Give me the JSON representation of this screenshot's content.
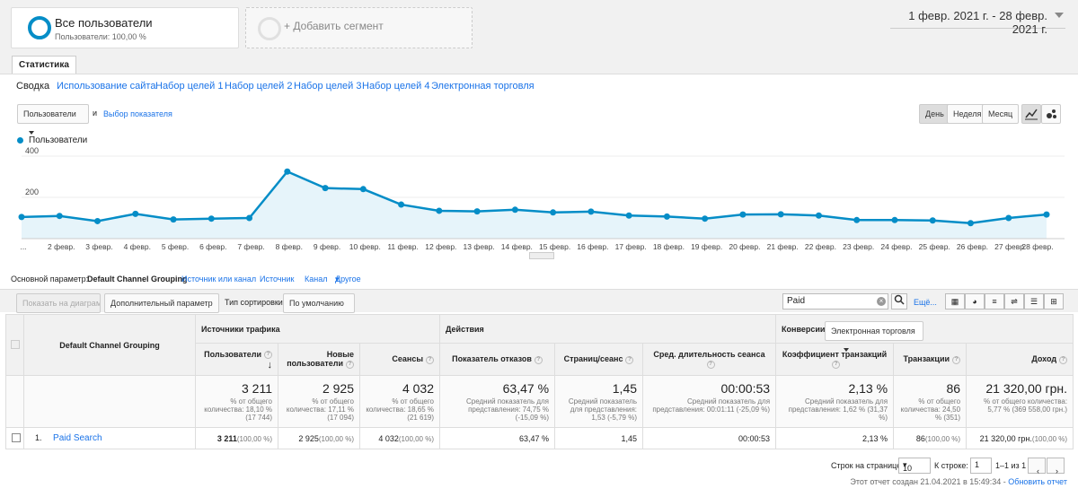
{
  "segments": {
    "all": {
      "title": "Все пользователи",
      "subtitle": "Пользователи: 100,00 %"
    },
    "add": {
      "title": "+ Добавить сегмент"
    }
  },
  "date_range": "1 февр. 2021 г. - 28 февр. 2021 г.",
  "tab": "Статистика",
  "subnav": [
    "Сводка",
    "Использование сайта",
    "Набор целей 1",
    "Набор целей 2",
    "Набор целей 3",
    "Набор целей 4",
    "Электронная торговля"
  ],
  "chart_controls": {
    "metric": "Пользователи",
    "and": "и",
    "choose_metric": "Выбор показателя",
    "day": "День",
    "week": "Неделя",
    "month": "Месяц"
  },
  "legend": "Пользователи",
  "chart_data": {
    "type": "area",
    "series": [
      {
        "name": "Пользователи",
        "color": "#058dc7",
        "values": [
          105,
          110,
          85,
          120,
          93,
          97,
          100,
          325,
          245,
          240,
          165,
          135,
          132,
          140,
          127,
          131,
          112,
          107,
          97,
          117,
          118,
          112,
          90,
          90,
          88,
          75,
          100,
          117
        ]
      }
    ],
    "x": [
      "...",
      "2 февр.",
      "3 февр.",
      "4 февр.",
      "5 февр.",
      "6 февр.",
      "7 февр.",
      "8 февр.",
      "9 февр.",
      "10 февр.",
      "11 февр.",
      "12 февр.",
      "13 февр.",
      "14 февр.",
      "15 февр.",
      "16 февр.",
      "17 февр.",
      "18 февр.",
      "19 февр.",
      "20 февр.",
      "21 февр.",
      "22 февр.",
      "23 февр.",
      "24 февр.",
      "25 февр.",
      "26 февр.",
      "27 февр.",
      "28 февр."
    ],
    "y_ticks": [
      "400",
      "200"
    ],
    "ylim": [
      0,
      400
    ]
  },
  "dimensions": {
    "label": "Основной параметр:",
    "items": [
      "Default Channel Grouping",
      "Источник или канал",
      "Источник",
      "Канал",
      "Другое"
    ]
  },
  "toolbar": {
    "plot": "Показать на диаграмме",
    "secondary": "Дополнительный параметр",
    "sort_label": "Тип сортировки:",
    "sort_value": "По умолчанию",
    "search": "Paid",
    "more": "Ещё..."
  },
  "table": {
    "dim_header": "Default Channel Grouping",
    "groups": {
      "acquisition": "Источники трафика",
      "behavior": "Действия",
      "conversions": "Конверсии"
    },
    "conversion_select": "Электронная торговля",
    "columns": [
      "Пользователи",
      "Новые пользователи",
      "Сеансы",
      "Показатель отказов",
      "Страниц/сеанс",
      "Сред. длительность сеанса",
      "Коэффициент транзакций",
      "Транзакции",
      "Доход"
    ],
    "totals": [
      {
        "value": "3 211",
        "sub": "% от общего количества: 18,10 % (17 744)"
      },
      {
        "value": "2 925",
        "sub": "% от общего количества: 17,11 % (17 094)"
      },
      {
        "value": "4 032",
        "sub": "% от общего количества: 18,65 % (21 619)"
      },
      {
        "value": "63,47 %",
        "sub": "Средний показатель для представления: 74,75 % (-15,09 %)"
      },
      {
        "value": "1,45",
        "sub": "Средний показатель для представления: 1,53 (-5,79 %)"
      },
      {
        "value": "00:00:53",
        "sub": "Средний показатель для представления: 00:01:11 (-25,09 %)"
      },
      {
        "value": "2,13 %",
        "sub": "Средний показатель для представления: 1,62 % (31,37 %)"
      },
      {
        "value": "86",
        "sub": "% от общего количества: 24,50 % (351)"
      },
      {
        "value": "21 320,00 грн.",
        "sub": "% от общего количества: 5,77 % (369 558,00 грн.)"
      }
    ],
    "rows": [
      {
        "index": "1.",
        "name": "Paid Search",
        "cells": [
          {
            "v": "3 211",
            "p": "(100,00 %)"
          },
          {
            "v": "2 925",
            "p": "(100,00 %)"
          },
          {
            "v": "4 032",
            "p": "(100,00 %)"
          },
          {
            "v": "63,47 %",
            "p": ""
          },
          {
            "v": "1,45",
            "p": ""
          },
          {
            "v": "00:00:53",
            "p": ""
          },
          {
            "v": "2,13 %",
            "p": ""
          },
          {
            "v": "86",
            "p": "(100,00 %)"
          },
          {
            "v": "21 320,00 грн.",
            "p": "(100,00 %)"
          }
        ]
      }
    ]
  },
  "pager": {
    "rows_label": "Строк на странице:",
    "rows_value": "10",
    "goto_label": "К строке:",
    "goto_value": "1",
    "range": "1–1 из 1"
  },
  "footer": {
    "text": "Этот отчет создан 21.04.2021 в 15:49:34 - ",
    "link": "Обновить отчет"
  }
}
